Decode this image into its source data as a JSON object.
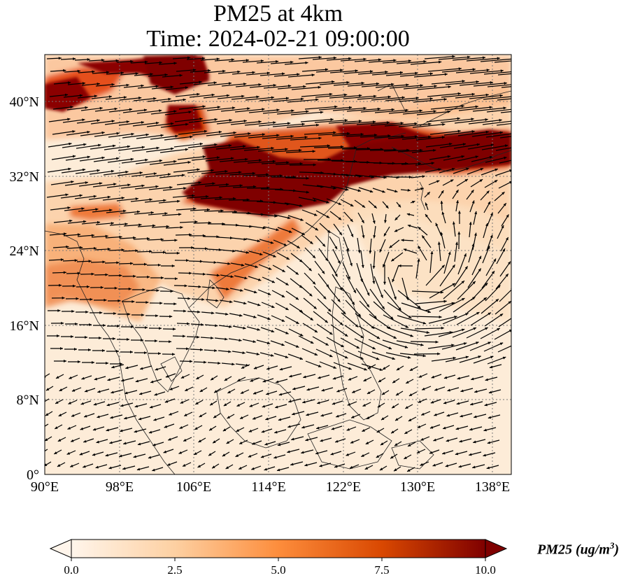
{
  "title": {
    "line1": "PM25 at 4km",
    "line2": "Time: 2024-02-21 09:00:00"
  },
  "map": {
    "lon_range": [
      90,
      140
    ],
    "lat_range": [
      0,
      45
    ],
    "lon_ticks": [
      "90°E",
      "98°E",
      "106°E",
      "114°E",
      "122°E",
      "130°E",
      "138°E"
    ],
    "lat_ticks": [
      "0°",
      "8°N",
      "16°N",
      "24°N",
      "32°N",
      "40°N"
    ],
    "gridlines": "dotted",
    "field": "PM25",
    "vectors": "wind"
  },
  "colorbar": {
    "label": "PM25 (ug/m³)",
    "label_text": "PM25 (ug/m",
    "label_sup": "3",
    "label_close": ")",
    "ticks": [
      "0.0",
      "2.5",
      "5.0",
      "7.5",
      "10.0"
    ],
    "range": [
      0,
      10
    ],
    "extend": "both",
    "colors": [
      "#fff5eb",
      "#fdd0a2",
      "#fd8d3c",
      "#d94801",
      "#7f0000"
    ]
  }
}
